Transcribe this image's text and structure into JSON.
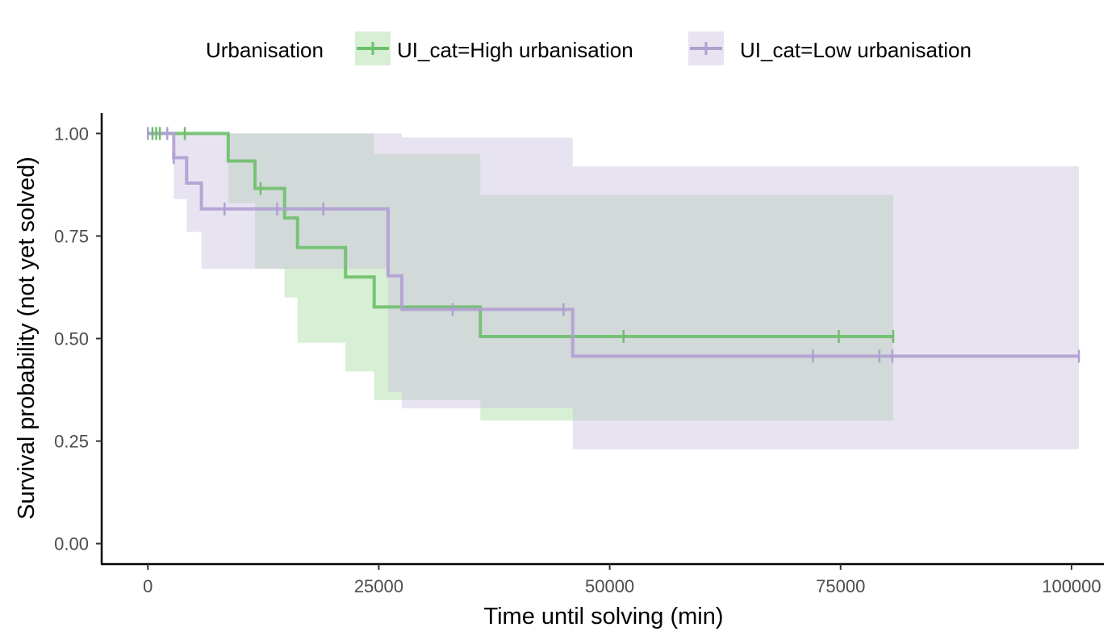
{
  "chart_data": {
    "type": "line",
    "subtype": "kaplan-meier survival curve with confidence bands",
    "xlabel": "Time until solving (min)",
    "ylabel": "Survival probability (not yet solved)",
    "xlim": [
      -5000,
      103500
    ],
    "ylim": [
      -0.05,
      1.05
    ],
    "x_ticks": [
      0,
      25000,
      50000,
      75000,
      100000
    ],
    "x_tick_labels": [
      "0",
      "25000",
      "50000",
      "75000",
      "100000"
    ],
    "y_ticks": [
      0,
      0.25,
      0.5,
      0.75,
      1.0
    ],
    "y_tick_labels": [
      "0.00",
      "0.25",
      "0.50",
      "0.75",
      "1.00"
    ],
    "grid": false,
    "legend": {
      "title": "Urbanisation",
      "position": "top"
    },
    "series": [
      {
        "name": "UI_cat=High urbanisation",
        "color": "#6dbf6a",
        "fill_color": "#a6dba0",
        "steps": [
          {
            "x": 0,
            "y": 1.0
          },
          {
            "x": 8700,
            "y": 0.933
          },
          {
            "x": 11600,
            "y": 0.866
          },
          {
            "x": 14800,
            "y": 0.794
          },
          {
            "x": 16200,
            "y": 0.722
          },
          {
            "x": 21400,
            "y": 0.65
          },
          {
            "x": 24500,
            "y": 0.577
          },
          {
            "x": 36000,
            "y": 0.505
          }
        ],
        "end_x": 80700,
        "band": [
          {
            "x": 0,
            "lo": 1.0,
            "hi": 1.0
          },
          {
            "x": 8700,
            "lo": 0.83,
            "hi": 1.0
          },
          {
            "x": 11600,
            "lo": 0.67,
            "hi": 1.0
          },
          {
            "x": 14800,
            "lo": 0.6,
            "hi": 1.0
          },
          {
            "x": 16200,
            "lo": 0.49,
            "hi": 1.0
          },
          {
            "x": 21400,
            "lo": 0.42,
            "hi": 1.0
          },
          {
            "x": 24500,
            "lo": 0.35,
            "hi": 0.95
          },
          {
            "x": 36000,
            "lo": 0.3,
            "hi": 0.85
          }
        ],
        "censored": [
          {
            "x": 500,
            "y": 1.0
          },
          {
            "x": 900,
            "y": 1.0
          },
          {
            "x": 1300,
            "y": 1.0
          },
          {
            "x": 4000,
            "y": 1.0
          },
          {
            "x": 12200,
            "y": 0.866
          },
          {
            "x": 51500,
            "y": 0.505
          },
          {
            "x": 74800,
            "y": 0.505
          },
          {
            "x": 80700,
            "y": 0.505
          }
        ]
      },
      {
        "name": "UI_cat=Low urbanisation",
        "color": "#b09fd1",
        "fill_color": "#cbc0e0",
        "steps": [
          {
            "x": 0,
            "y": 1.0
          },
          {
            "x": 2800,
            "y": 0.941
          },
          {
            "x": 4200,
            "y": 0.879
          },
          {
            "x": 5800,
            "y": 0.816
          },
          {
            "x": 26000,
            "y": 0.653
          },
          {
            "x": 27500,
            "y": 0.571
          },
          {
            "x": 46000,
            "y": 0.457
          }
        ],
        "end_x": 100800,
        "band": [
          {
            "x": 0,
            "lo": 1.0,
            "hi": 1.0
          },
          {
            "x": 2800,
            "lo": 0.84,
            "hi": 1.0
          },
          {
            "x": 4200,
            "lo": 0.76,
            "hi": 1.0
          },
          {
            "x": 5800,
            "lo": 0.67,
            "hi": 1.0
          },
          {
            "x": 26000,
            "lo": 0.37,
            "hi": 1.0
          },
          {
            "x": 27500,
            "lo": 0.33,
            "hi": 0.99
          },
          {
            "x": 46000,
            "lo": 0.23,
            "hi": 0.92
          }
        ],
        "censored": [
          {
            "x": 0,
            "y": 1.0
          },
          {
            "x": 2100,
            "y": 1.0
          },
          {
            "x": 2800,
            "y": 0.941
          },
          {
            "x": 8300,
            "y": 0.816
          },
          {
            "x": 14000,
            "y": 0.816
          },
          {
            "x": 19000,
            "y": 0.816
          },
          {
            "x": 33000,
            "y": 0.571
          },
          {
            "x": 45000,
            "y": 0.571
          },
          {
            "x": 72000,
            "y": 0.457
          },
          {
            "x": 79200,
            "y": 0.457
          },
          {
            "x": 80600,
            "y": 0.457
          },
          {
            "x": 100800,
            "y": 0.457
          }
        ]
      }
    ]
  }
}
